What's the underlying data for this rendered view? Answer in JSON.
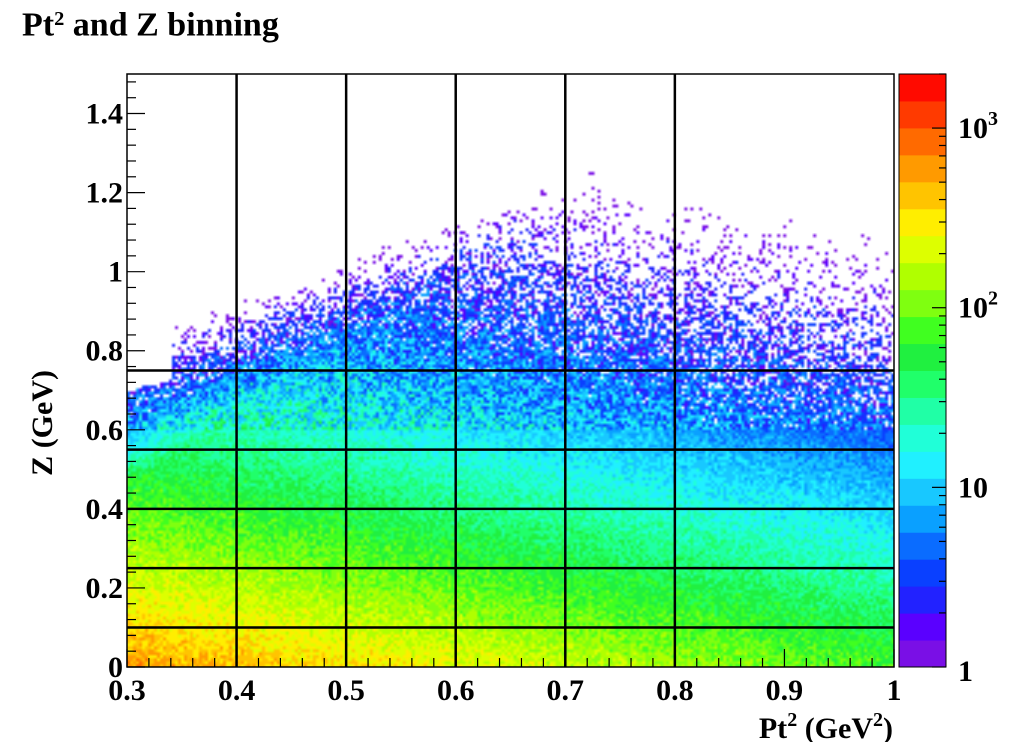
{
  "chart_title": {
    "main": "Pt",
    "sup": "2",
    "rest": " and Z binning"
  },
  "chart_data": {
    "type": "heatmap",
    "title": "Pt² and Z binning",
    "xlabel": "Pt² (GeV²)",
    "ylabel": "Z (GeV)",
    "xlim": [
      0.3,
      1.0
    ],
    "ylim": [
      0.0,
      1.5
    ],
    "x_ticks": [
      "0.3",
      "0.4",
      "0.5",
      "0.6",
      "0.7",
      "0.8",
      "0.9",
      "1"
    ],
    "y_ticks": [
      "0",
      "0.2",
      "0.4",
      "0.6",
      "0.8",
      "1",
      "1.2",
      "1.4"
    ],
    "colorbar": {
      "scale": "log",
      "range": [
        1,
        2000
      ],
      "labels": [
        {
          "base": "1",
          "exp": "",
          "value": 1
        },
        {
          "base": "10",
          "exp": "",
          "value": 10
        },
        {
          "base": "10",
          "exp": "2",
          "value": 100
        },
        {
          "base": "10",
          "exp": "3",
          "value": 1000
        }
      ]
    },
    "bin_edges_x": [
      0.4,
      0.5,
      0.6,
      0.7,
      0.8
    ],
    "bin_edges_y": [
      0.1,
      0.25,
      0.4,
      0.55,
      0.75
    ],
    "grid": false,
    "legend": "none"
  },
  "x_axis_label": {
    "pre": "Pt",
    "sup1": "2",
    "mid": " (GeV",
    "sup2": "2",
    "post": ")"
  },
  "y_axis_label": "Z (GeV)",
  "palette": [
    "#7a0fe6",
    "#5a00ff",
    "#2222ff",
    "#0a40ff",
    "#0a6cff",
    "#0aa0ff",
    "#18c8ff",
    "#20f0ff",
    "#20ffd8",
    "#20ffa6",
    "#20ff6a",
    "#20f040",
    "#40ff20",
    "#7fff10",
    "#b0ff00",
    "#ddff00",
    "#ffee00",
    "#ffc400",
    "#ff9a00",
    "#ff6a00",
    "#ff3a00",
    "#ff0a00"
  ]
}
